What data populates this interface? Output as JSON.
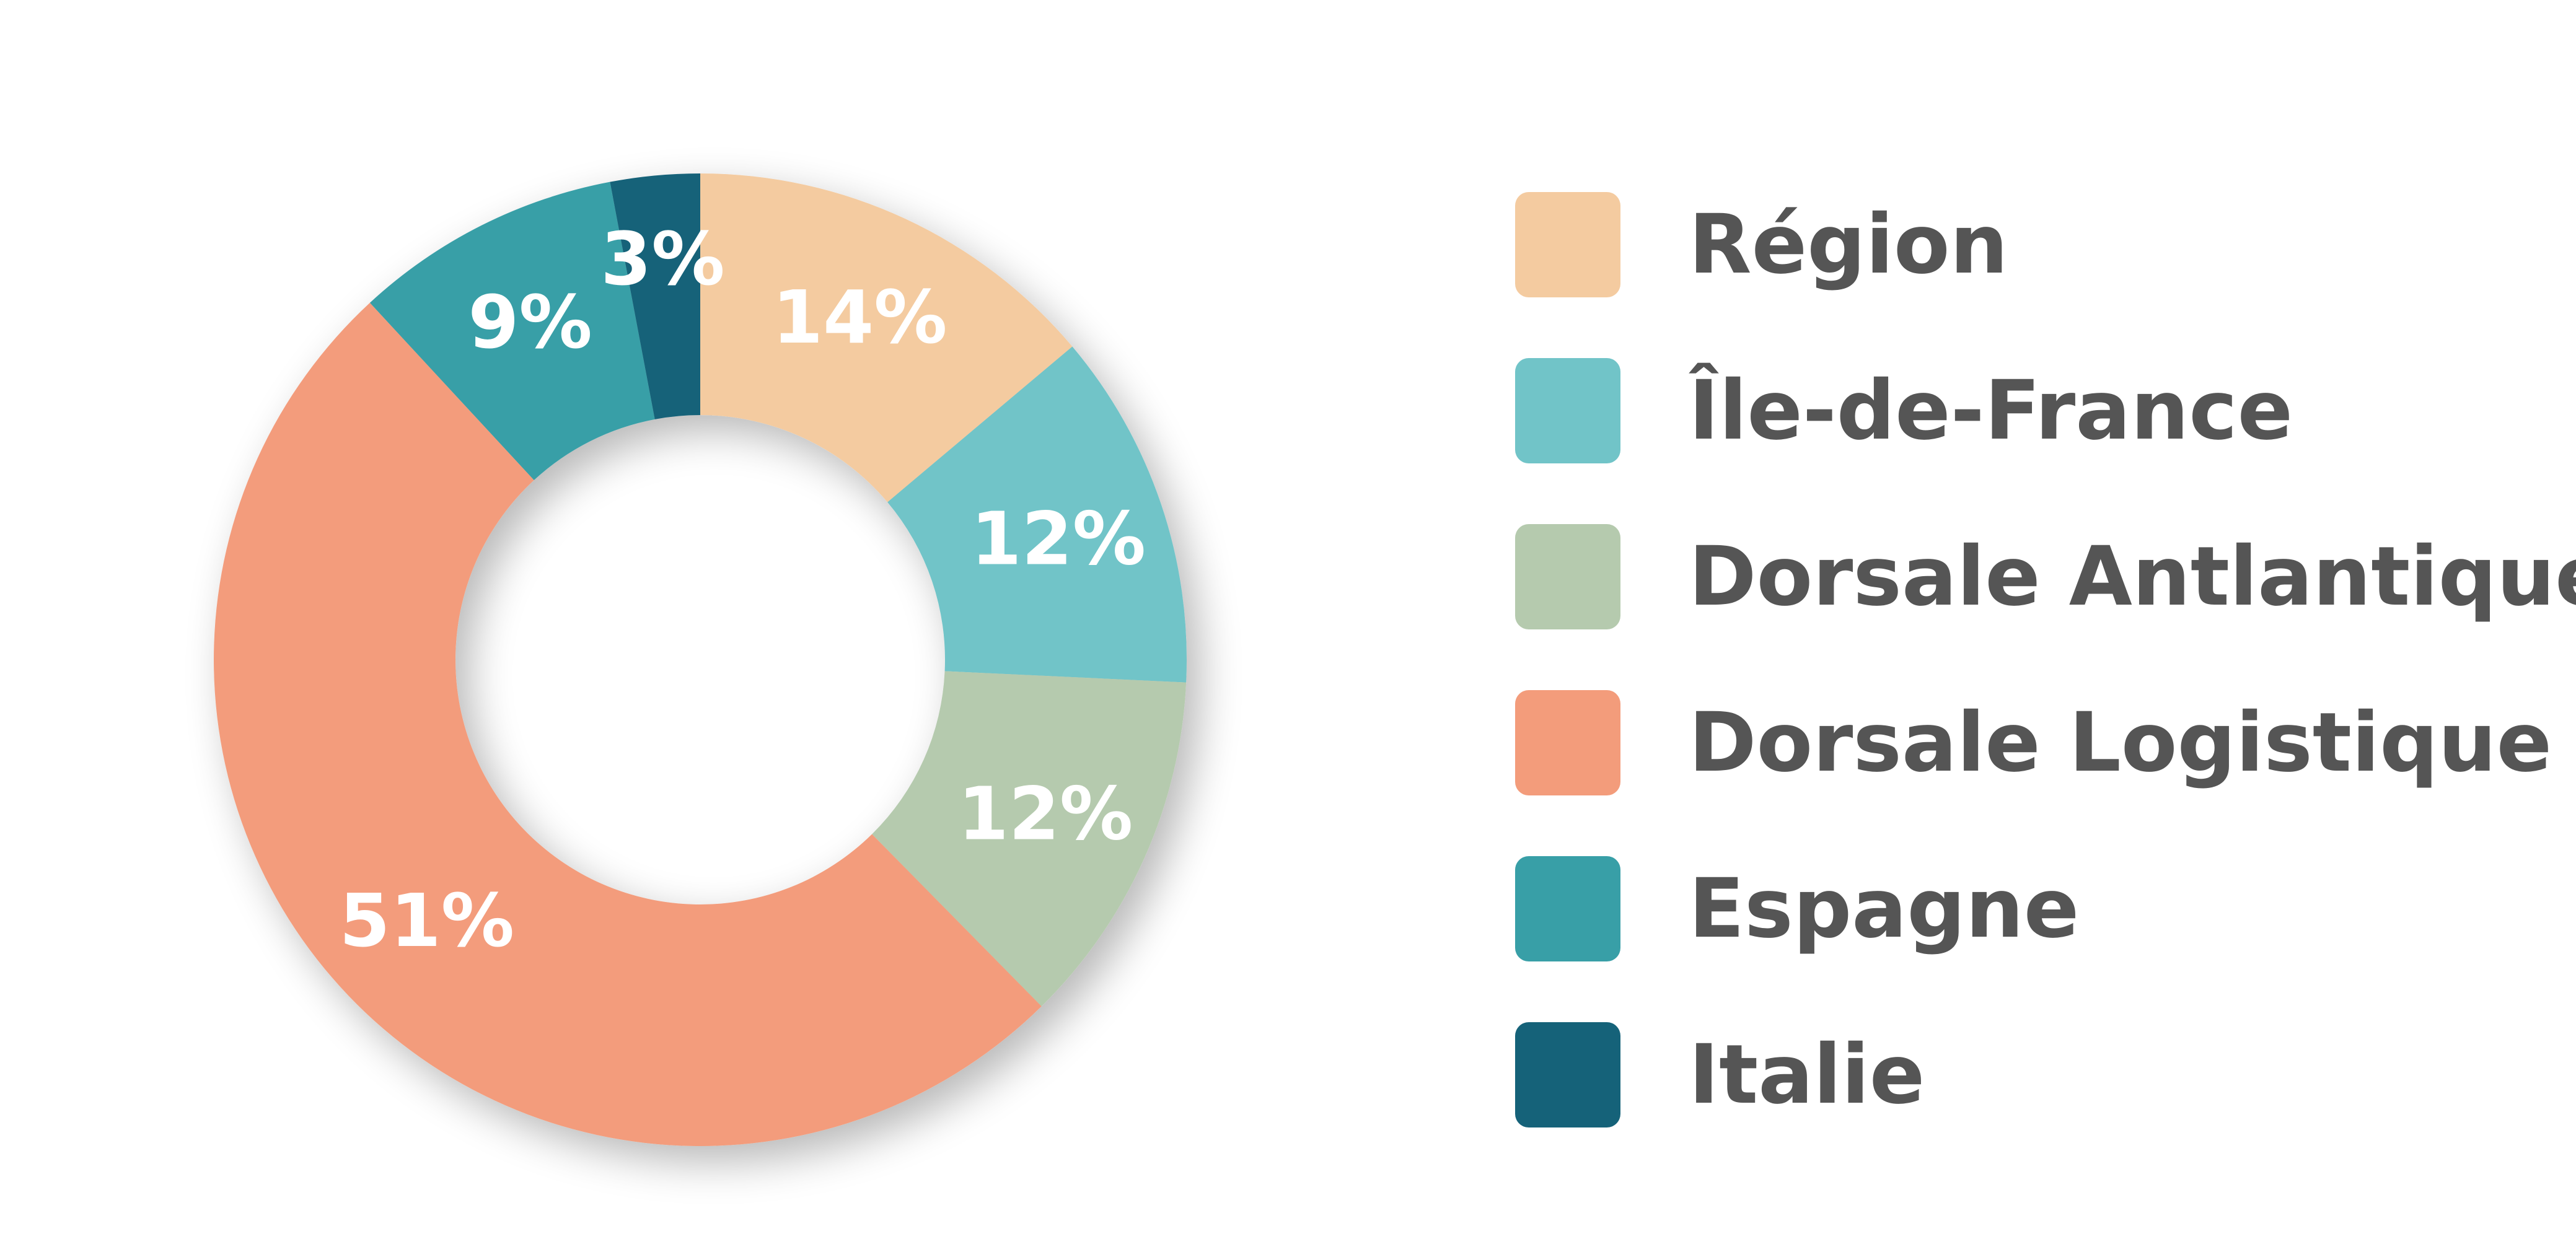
{
  "chart_data": {
    "type": "pie",
    "variant": "donut",
    "categories": [
      "Région",
      "Île-de-France",
      "Dorsale Antlantique",
      "Dorsale Logistique",
      "Espagne",
      "Italie"
    ],
    "values": [
      14,
      12,
      12,
      51,
      9,
      3
    ],
    "value_labels": [
      "14%",
      "12%",
      "12%",
      "51%",
      "9%",
      "3%"
    ],
    "colors": [
      "#F4CBA0",
      "#71C4C8",
      "#B5CAAE",
      "#F39C7B",
      "#389FA7",
      "#156279"
    ],
    "label_color": "#ffffff",
    "legend_text_color": "#555555",
    "legend_position": "right",
    "start_angle": "top, clockwise"
  }
}
